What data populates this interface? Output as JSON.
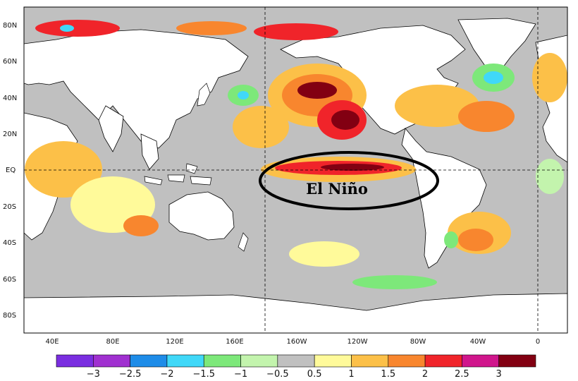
{
  "map": {
    "annotation": "El Niño",
    "lon_ticks": [
      "40E",
      "80E",
      "120E",
      "160E",
      "160W",
      "120W",
      "80W",
      "40W",
      "0"
    ],
    "lat_ticks": [
      "80N",
      "60N",
      "40N",
      "20N",
      "EQ",
      "20S",
      "40S",
      "60S",
      "80S"
    ]
  },
  "legend": {
    "labels": [
      "−3",
      "−2.5",
      "−2",
      "−1.5",
      "−1",
      "−0.5",
      "0.5",
      "1",
      "1.5",
      "2",
      "2.5",
      "3"
    ],
    "colors": [
      "#7a2ee0",
      "#a030d0",
      "#1e8ce8",
      "#40d8f8",
      "#7de87a",
      "#c3f4ad",
      "#c0c0c0",
      "#fffa9a",
      "#fcc048",
      "#f8862e",
      "#f0242a",
      "#d0168c",
      "#820012"
    ]
  }
}
